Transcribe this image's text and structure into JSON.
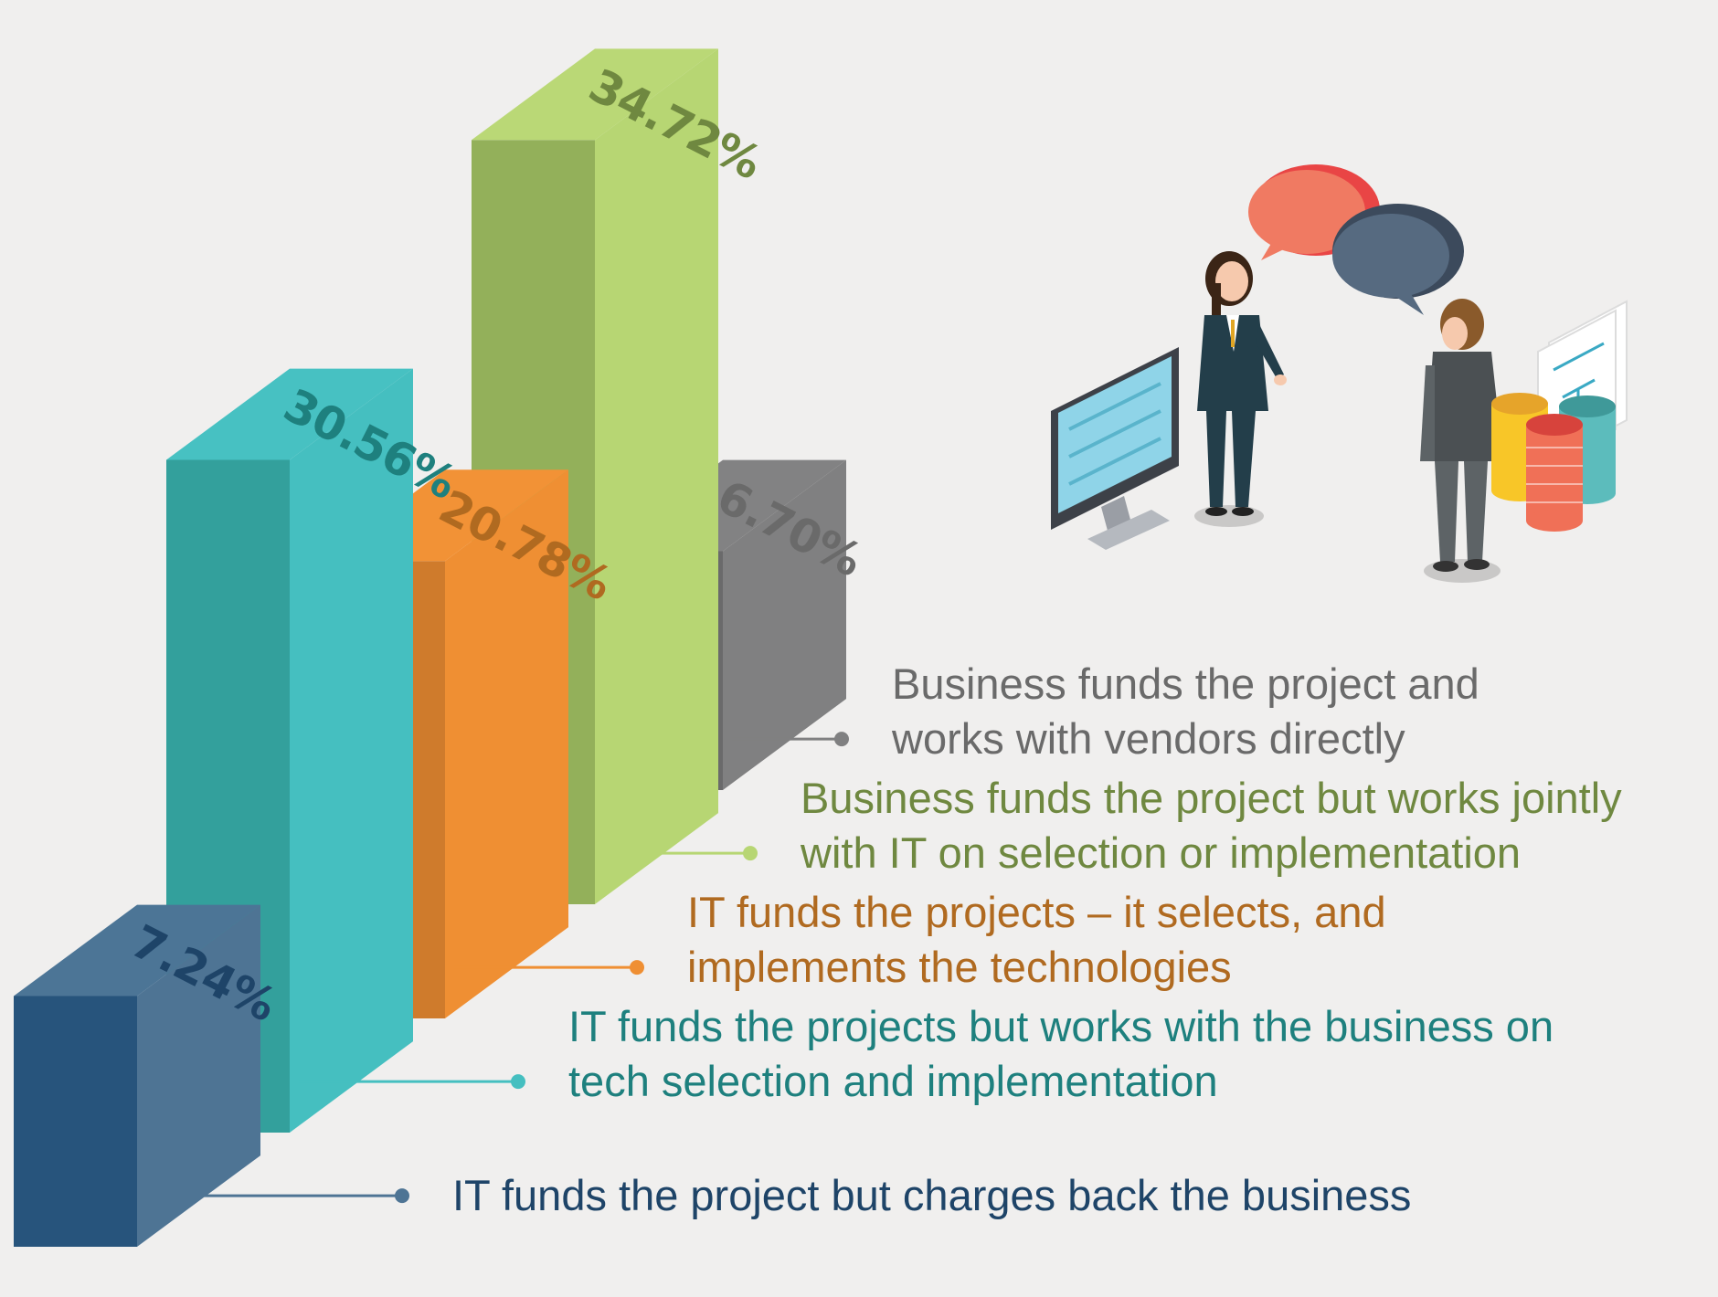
{
  "chart_data": {
    "type": "bar",
    "style": "3d-isometric",
    "title": "",
    "xlabel": "",
    "ylabel": "",
    "grid": false,
    "legend_placement": "right, beside each bar",
    "unit": "%",
    "categories": [
      "IT funds the project but charges back the business",
      "IT funds the projects but works with the business on tech selection and implementation",
      "IT funds the projects – it selects, and implements the technologies",
      "Business funds the project but works jointly with IT on selection or implementation",
      "Business funds the project and works with vendors directly"
    ],
    "values": [
      7.24,
      30.56,
      20.78,
      34.72,
      6.7
    ],
    "value_labels": [
      "7.24%",
      "30.56%",
      "20.78%",
      "34.72%",
      "6.70%"
    ],
    "legend_lines": [
      [
        "IT funds the project but charges back the business"
      ],
      [
        "IT funds the projects but works with the business on",
        "tech selection and implementation"
      ],
      [
        "IT funds the projects – it selects, and",
        "implements the technologies"
      ],
      [
        "Business funds the project but works jointly",
        "with IT on selection or implementation"
      ],
      [
        "Business funds the project and",
        "works with vendors directly"
      ]
    ],
    "colors": {
      "bars_front": [
        "#27547c",
        "#33a09c",
        "#cf7b2c",
        "#93b05a",
        "#6a6a6b"
      ],
      "bars_side": [
        "#4e7494",
        "#45bfc0",
        "#ef8f33",
        "#b7d673",
        "#808081"
      ],
      "bars_top": [
        "#4c7596",
        "#47c1c2",
        "#f29236",
        "#bad876",
        "#828283"
      ],
      "label_colors": [
        "#1e4468",
        "#1e807e",
        "#b06a20",
        "#6f8840",
        "#6a6a6a"
      ]
    }
  },
  "illustration": {
    "description_icons": [
      "monitor-icon",
      "businesswoman-icon",
      "businessman-icon",
      "speech-bubble-icon",
      "document-icon",
      "coin-stack-icon"
    ]
  }
}
